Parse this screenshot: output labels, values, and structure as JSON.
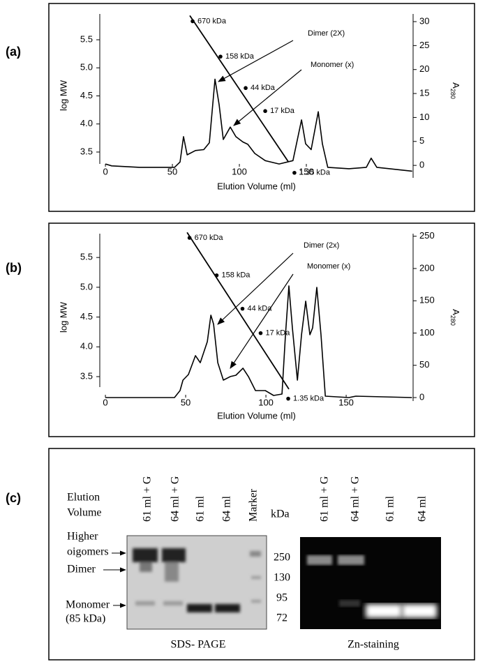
{
  "chart_data": [
    {
      "type": "line",
      "panel_label": "(a)",
      "xlabel": "Elution Volume (ml)",
      "ylabel": "log MW",
      "y2label": [
        "A",
        "280"
      ],
      "xlim": [
        -4.2,
        229.7
      ],
      "xticks": [
        0,
        50,
        100,
        150
      ],
      "ylim": [
        3.04,
        5.96
      ],
      "yticks": [
        3.5,
        {
          "value": 4,
          "label": "4.0"
        },
        4.5,
        {
          "value": 5,
          "label": "5.0"
        },
        5.5
      ],
      "y2lim": [
        -2.6,
        31.6
      ],
      "y2ticks": [
        0,
        5,
        10,
        15,
        20,
        25,
        30
      ],
      "annotations": [
        "Dimer (2X)",
        "Monomer (x)"
      ],
      "series": [
        {
          "mode": "line",
          "axis": "y2",
          "color": "#000000",
          "x": [
            0,
            4.7,
            25.5,
            51.6,
            55.7,
            58.3,
            61,
            67.2,
            73.4,
            77.6,
            81.8,
            84.9,
            88,
            93.2,
            97.4,
            102.6,
            106.3,
            111.5,
            119.3,
            129.7,
            140,
            146.4,
            149.5,
            153.6,
            158.9,
            162,
            166,
            181.8,
            194.8,
            198.4,
            202.6,
            229
          ],
          "values": [
            0.3,
            -0.1,
            -0.4,
            -0.4,
            0.7,
            6.0,
            2.2,
            3.1,
            3.3,
            4.7,
            18,
            12.7,
            5.4,
            8.0,
            6.0,
            4.9,
            4.4,
            2.5,
            1.0,
            0.3,
            1.0,
            9.5,
            4.5,
            3.3,
            11.2,
            4.5,
            -0.4,
            -0.7,
            -0.4,
            1.5,
            -0.4,
            -1.2
          ]
        },
        {
          "mode": "line",
          "color": "#000000",
          "x": [
            63,
            136.5
          ],
          "values": [
            5.93,
            3.33
          ]
        },
        {
          "mode": "markers",
          "color": "#000000",
          "x": [
            65.1,
            85.9,
            104.7,
            119.3,
            141.1
          ],
          "values": [
            5.83,
            5.2,
            4.64,
            4.23,
            3.13
          ],
          "labels": [
            "670 kDa",
            "158 kDa",
            "44 kDa",
            "17 kDa",
            "1.35 kDa"
          ]
        }
      ]
    },
    {
      "type": "line",
      "panel_label": "(b)",
      "xlabel": "Elution Volume (ml)",
      "ylabel": "log MW",
      "y2label": [
        "A",
        "280"
      ],
      "xlim": [
        -3.5,
        191.7
      ],
      "xticks": [
        0,
        50,
        100,
        150
      ],
      "ylim": [
        3.09,
        5.9
      ],
      "yticks": [
        3.5,
        {
          "value": 4,
          "label": "4.0"
        },
        4.5,
        {
          "value": 5,
          "label": "5.0"
        },
        5.5
      ],
      "y2lim": [
        -5.4,
        254
      ],
      "y2ticks": [
        0,
        50,
        100,
        150,
        200,
        250
      ],
      "annotations": [
        "Dimer (2x)",
        "Monomer (x)"
      ],
      "series": [
        {
          "mode": "line",
          "axis": "y2",
          "color": "#000000",
          "x": [
            0,
            43,
            46.5,
            48.3,
            51.7,
            56.1,
            59.1,
            63.5,
            65.7,
            67.4,
            70,
            73.5,
            77.8,
            81.3,
            85.7,
            89.1,
            93.5,
            99.6,
            104.8,
            110,
            112.2,
            114.3,
            116.5,
            119.6,
            122.2,
            124.8,
            127.4,
            129.1,
            131.7,
            134.3,
            137,
            151.7,
            156,
            191
          ],
          "values": [
            0,
            0,
            10.8,
            27,
            35.7,
            65,
            54,
            86.6,
            127.7,
            113.6,
            54,
            27,
            32.5,
            34.6,
            45.5,
            32.5,
            10.8,
            10.8,
            3.2,
            5.4,
            97.4,
            173,
            108,
            27,
            97.4,
            149.4,
            97.4,
            108,
            170.8,
            97.4,
            2.2,
            0,
            2.2,
            0
          ]
        },
        {
          "mode": "line",
          "color": "#000000",
          "x": [
            50.9,
            114.3
          ],
          "values": [
            5.92,
            3.29
          ]
        },
        {
          "mode": "markers",
          "color": "#000000",
          "x": [
            52.4,
            69.3,
            85.4,
            96.7,
            113.9
          ],
          "values": [
            5.83,
            5.2,
            4.64,
            4.23,
            3.13
          ],
          "labels": [
            "670 kDa",
            "158 kDa",
            "44 kDa",
            "17 kDa",
            "1.35 kDa"
          ]
        }
      ]
    }
  ],
  "gel": {
    "panel_label": "(c)",
    "elution_volume": [
      "Elution",
      "Volume"
    ],
    "unit": "kDa",
    "left_lanes": [
      "61 ml + G",
      "64 ml + G",
      "61 ml",
      "64 ml",
      "Marker"
    ],
    "right_lanes": [
      "61 ml + G",
      "64 ml + G",
      "61 ml",
      "64 ml"
    ],
    "band_labels": [
      [
        "Higher",
        "oigomers"
      ],
      [
        "Dimer"
      ],
      [
        "Monomer",
        "(85 kDa)"
      ]
    ],
    "marker_sizes": [
      "250",
      "130",
      "95",
      "72"
    ],
    "captions": [
      "SDS- PAGE",
      "Zn-staining"
    ]
  }
}
